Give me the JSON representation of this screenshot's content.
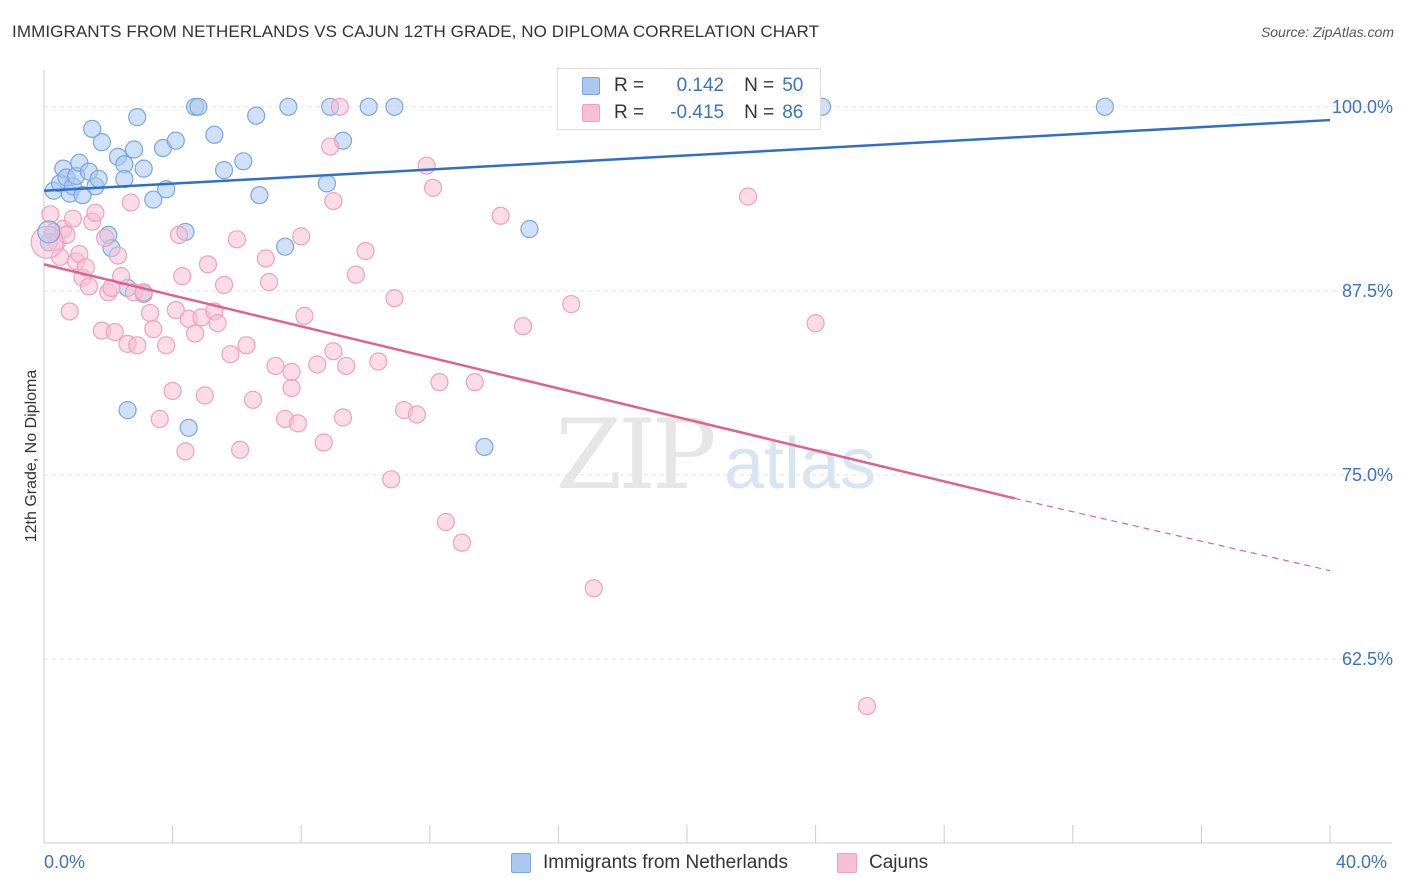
{
  "title": "IMMIGRANTS FROM NETHERLANDS VS CAJUN 12TH GRADE, NO DIPLOMA CORRELATION CHART",
  "source": "Source: ZipAtlas.com",
  "watermark": {
    "zip": "ZIP",
    "atlas": "atlas"
  },
  "legend_stats": {
    "series1": {
      "r_label": "R =",
      "r_value": "0.142",
      "n_label": "N =",
      "n_value": "50"
    },
    "series2": {
      "r_label": "R =",
      "r_value": "-0.415",
      "n_label": "N =",
      "n_value": "86"
    }
  },
  "chart_data": {
    "type": "scatter",
    "title": "IMMIGRANTS FROM NETHERLANDS VS CAJUN 12TH GRADE, NO DIPLOMA CORRELATION CHART",
    "xlabel": "",
    "ylabel": "12th Grade, No Diploma",
    "xlim": [
      0,
      40
    ],
    "ylim": [
      50,
      102.5
    ],
    "x_tick_labels": [
      "0.0%",
      "40.0%"
    ],
    "y_ticks": [
      100,
      87.5,
      75,
      62.5
    ],
    "y_tick_labels": [
      "100.0%",
      "87.5%",
      "75.0%",
      "62.5%"
    ],
    "grid": true,
    "series": [
      {
        "name": "Immigrants from Netherlands",
        "color": "#7aa6e0",
        "fill": "#aac8f0",
        "line_color": "#2f6fc9",
        "trend": {
          "x": [
            0,
            40
          ],
          "y": [
            94.3,
            99.1
          ]
        },
        "points": [
          [
            0.3,
            94.3
          ],
          [
            0.5,
            94.8
          ],
          [
            0.6,
            95.8
          ],
          [
            0.7,
            95.2
          ],
          [
            0.8,
            94.1
          ],
          [
            0.9,
            94.6
          ],
          [
            1.0,
            95.3
          ],
          [
            1.1,
            96.2
          ],
          [
            1.2,
            94.0
          ],
          [
            1.4,
            95.6
          ],
          [
            1.5,
            98.5
          ],
          [
            1.6,
            94.6
          ],
          [
            1.7,
            95.1
          ],
          [
            1.8,
            97.6
          ],
          [
            2.0,
            91.3
          ],
          [
            2.1,
            90.4
          ],
          [
            2.3,
            96.6
          ],
          [
            2.5,
            96.1
          ],
          [
            2.5,
            95.1
          ],
          [
            2.6,
            87.7
          ],
          [
            2.6,
            79.4
          ],
          [
            2.8,
            97.1
          ],
          [
            2.9,
            99.3
          ],
          [
            3.1,
            87.3
          ],
          [
            3.1,
            95.8
          ],
          [
            3.4,
            93.7
          ],
          [
            3.7,
            97.2
          ],
          [
            3.8,
            94.4
          ],
          [
            4.1,
            97.7
          ],
          [
            4.4,
            91.5
          ],
          [
            4.5,
            78.2
          ],
          [
            4.7,
            100.0
          ],
          [
            4.8,
            100.0
          ],
          [
            5.3,
            98.1
          ],
          [
            5.6,
            95.7
          ],
          [
            6.2,
            96.3
          ],
          [
            6.6,
            99.4
          ],
          [
            6.7,
            94.0
          ],
          [
            7.5,
            90.5
          ],
          [
            7.6,
            100.0
          ],
          [
            8.8,
            94.8
          ],
          [
            8.9,
            100.0
          ],
          [
            9.3,
            97.7
          ],
          [
            10.1,
            100.0
          ],
          [
            10.9,
            100.0
          ],
          [
            13.7,
            76.9
          ],
          [
            15.1,
            91.7
          ],
          [
            24.2,
            100.0
          ],
          [
            33.0,
            100.0
          ],
          [
            0.15,
            90.8
          ]
        ]
      },
      {
        "name": "Cajuns",
        "color": "#f0a0bc",
        "fill": "#f8c0d4",
        "line_color": "#e0608e",
        "trend": {
          "x": [
            0,
            30.2
          ],
          "y": [
            89.3,
            73.4
          ]
        },
        "trend_dashed": {
          "x": [
            30.2,
            40
          ],
          "y": [
            73.4,
            68.5
          ]
        },
        "points": [
          [
            0.2,
            92.7
          ],
          [
            0.3,
            91.5
          ],
          [
            0.4,
            90.8
          ],
          [
            0.5,
            89.8
          ],
          [
            0.6,
            91.7
          ],
          [
            0.7,
            91.3
          ],
          [
            0.8,
            86.1
          ],
          [
            0.9,
            92.4
          ],
          [
            1.0,
            89.5
          ],
          [
            1.1,
            90.0
          ],
          [
            1.2,
            88.4
          ],
          [
            1.3,
            89.1
          ],
          [
            1.4,
            87.8
          ],
          [
            1.5,
            92.2
          ],
          [
            1.6,
            92.8
          ],
          [
            1.8,
            84.8
          ],
          [
            1.9,
            91.1
          ],
          [
            2.0,
            87.4
          ],
          [
            2.1,
            87.7
          ],
          [
            2.2,
            84.7
          ],
          [
            2.3,
            89.9
          ],
          [
            2.4,
            88.5
          ],
          [
            2.6,
            83.9
          ],
          [
            2.7,
            93.5
          ],
          [
            2.8,
            87.4
          ],
          [
            2.9,
            83.8
          ],
          [
            3.1,
            87.4
          ],
          [
            3.3,
            86.0
          ],
          [
            3.4,
            84.9
          ],
          [
            3.6,
            78.8
          ],
          [
            3.8,
            83.8
          ],
          [
            4.0,
            80.7
          ],
          [
            4.2,
            91.3
          ],
          [
            4.3,
            88.5
          ],
          [
            4.4,
            76.6
          ],
          [
            4.5,
            85.6
          ],
          [
            4.7,
            84.6
          ],
          [
            4.9,
            85.7
          ],
          [
            5.0,
            80.4
          ],
          [
            5.1,
            89.3
          ],
          [
            5.3,
            86.1
          ],
          [
            5.4,
            85.3
          ],
          [
            5.6,
            87.9
          ],
          [
            5.8,
            83.2
          ],
          [
            6.0,
            91.0
          ],
          [
            6.1,
            76.7
          ],
          [
            6.3,
            83.8
          ],
          [
            6.5,
            80.1
          ],
          [
            6.9,
            89.7
          ],
          [
            7.0,
            88.1
          ],
          [
            7.2,
            82.4
          ],
          [
            7.5,
            78.8
          ],
          [
            7.7,
            80.9
          ],
          [
            7.7,
            82.0
          ],
          [
            7.9,
            78.5
          ],
          [
            8.1,
            85.8
          ],
          [
            8.5,
            82.5
          ],
          [
            8.7,
            77.2
          ],
          [
            8.9,
            97.3
          ],
          [
            9.0,
            83.4
          ],
          [
            9.2,
            100.0
          ],
          [
            9.3,
            78.9
          ],
          [
            9.4,
            82.4
          ],
          [
            9.7,
            88.6
          ],
          [
            10.0,
            90.2
          ],
          [
            10.4,
            82.7
          ],
          [
            10.8,
            74.7
          ],
          [
            10.9,
            87.0
          ],
          [
            11.2,
            79.4
          ],
          [
            11.6,
            79.1
          ],
          [
            11.9,
            96.0
          ],
          [
            12.1,
            94.5
          ],
          [
            12.3,
            81.3
          ],
          [
            12.5,
            71.8
          ],
          [
            13.0,
            70.4
          ],
          [
            13.4,
            81.3
          ],
          [
            14.2,
            92.6
          ],
          [
            14.9,
            85.1
          ],
          [
            16.4,
            86.6
          ],
          [
            17.1,
            67.3
          ],
          [
            21.9,
            93.9
          ],
          [
            24.0,
            85.3
          ],
          [
            25.6,
            59.3
          ],
          [
            9.0,
            93.6
          ],
          [
            8.0,
            91.2
          ],
          [
            4.1,
            86.2
          ]
        ]
      }
    ]
  }
}
